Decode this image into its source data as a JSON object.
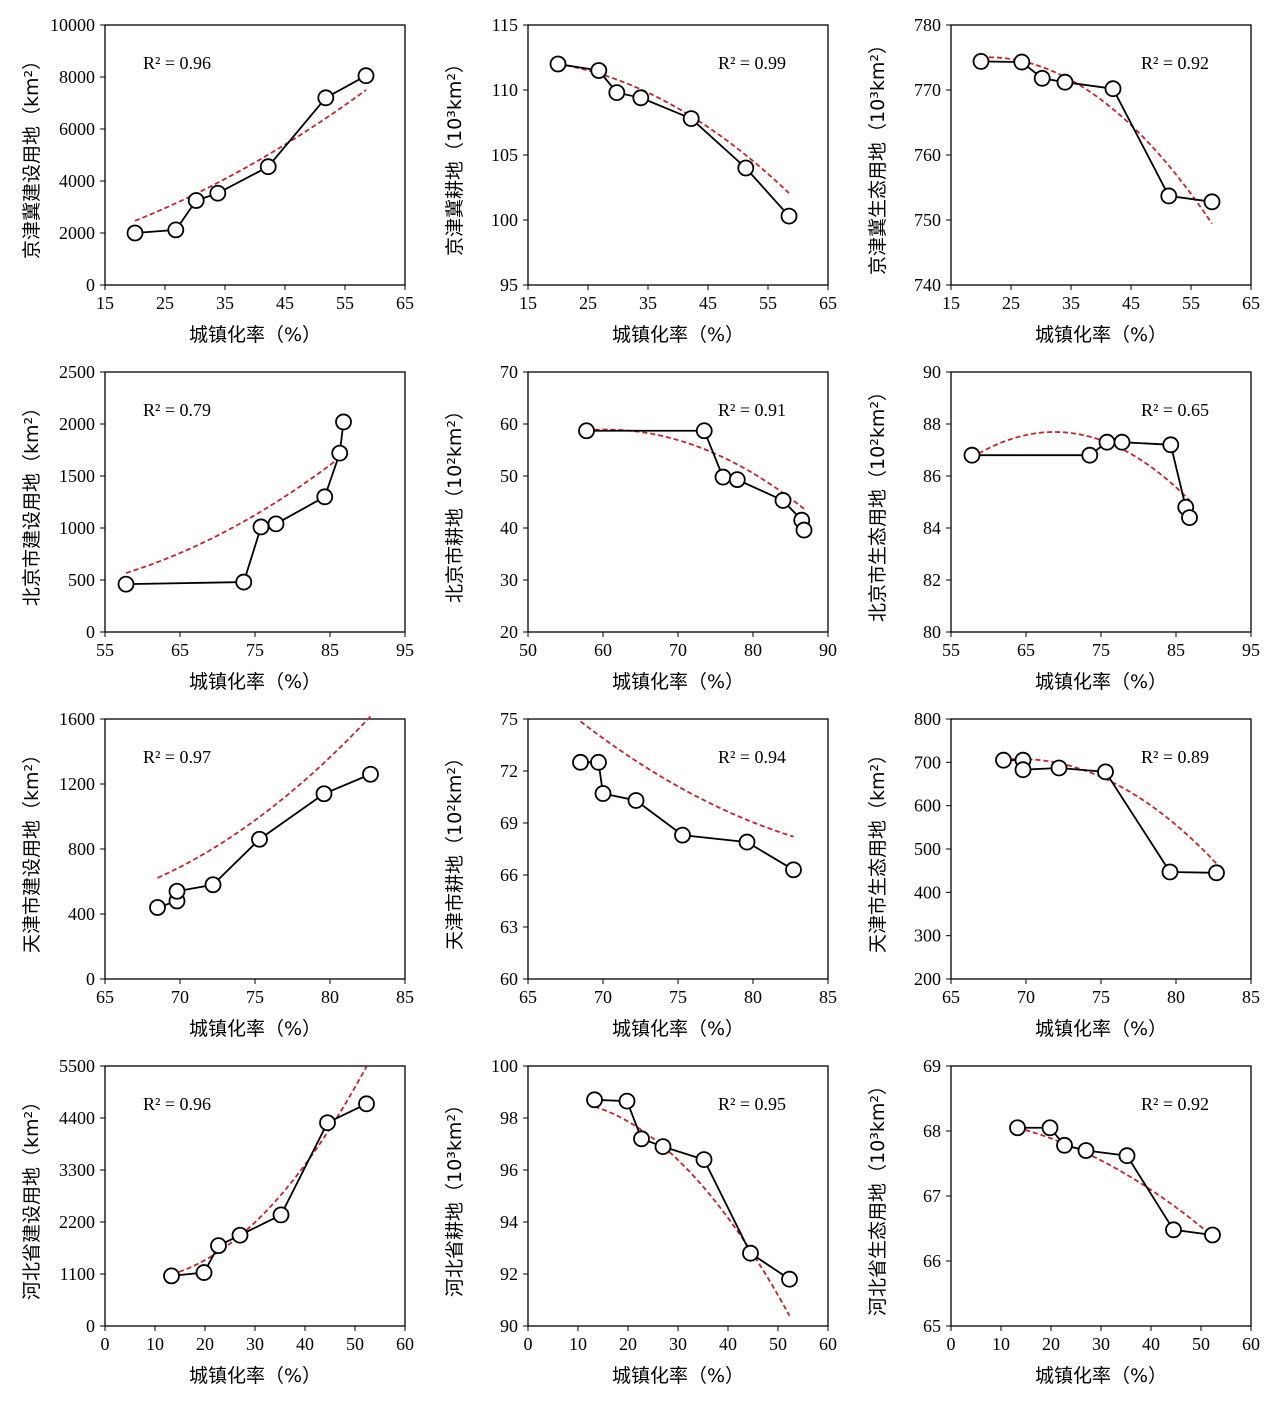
{
  "chart_data": [
    {
      "type": "scatter",
      "title": "",
      "xlabel": "城镇化率（%）",
      "ylabel": "京津冀建设用地（km²）",
      "r2": "R² = 0.96",
      "r2_pos": "top-left",
      "xlim": [
        15,
        65
      ],
      "xticks": [
        15,
        25,
        35,
        45,
        55,
        65
      ],
      "ylim": [
        0,
        10000
      ],
      "yticks": [
        0,
        2000,
        4000,
        6000,
        8000,
        10000
      ],
      "x": [
        20,
        26.8,
        30.2,
        33.8,
        42.2,
        51.8,
        58.5
      ],
      "y": [
        2000,
        2120,
        3250,
        3530,
        4550,
        7200,
        8050
      ],
      "trend": {
        "a": 0.9922,
        "b": 52.8,
        "c": 1015.7
      }
    },
    {
      "type": "scatter",
      "title": "",
      "xlabel": "城镇化率（%）",
      "ylabel": "京津冀耕地（10³km²）",
      "r2": "R² = 0.99",
      "r2_pos": "top-right",
      "xlim": [
        15,
        65
      ],
      "xticks": [
        15,
        25,
        35,
        45,
        55,
        65
      ],
      "ylim": [
        95,
        115
      ],
      "yticks": [
        95,
        100,
        105,
        110,
        115
      ],
      "x": [
        20,
        26.8,
        29.8,
        33.8,
        42.2,
        51.3,
        58.5
      ],
      "y": [
        112,
        111.5,
        109.8,
        109.4,
        107.8,
        104,
        100.3
      ],
      "trend": {
        "a": -0.004728,
        "b": 0.1131,
        "c": 111.63
      }
    },
    {
      "type": "scatter",
      "title": "",
      "xlabel": "城镇化率（%）",
      "ylabel": "京津冀生态用地（10³km²）",
      "r2": "R² = 0.92",
      "r2_pos": "top-right",
      "xlim": [
        15,
        65
      ],
      "xticks": [
        15,
        25,
        35,
        45,
        55,
        65
      ],
      "ylim": [
        740,
        780
      ],
      "yticks": [
        740,
        750,
        760,
        770,
        780
      ],
      "x": [
        20,
        26.8,
        30.2,
        34,
        42,
        51.3,
        58.5
      ],
      "y": [
        774.4,
        774.3,
        771.8,
        771.2,
        770.2,
        753.7,
        752.8
      ],
      "trend": {
        "a": -0.01836,
        "b": 0.7774,
        "c": 766.8
      }
    },
    {
      "type": "scatter",
      "title": "",
      "xlabel": "城镇化率（%）",
      "ylabel": "北京市建设用地（km²）",
      "r2": "R² = 0.79",
      "r2_pos": "top-left",
      "xlim": [
        55,
        95
      ],
      "xticks": [
        55,
        65,
        75,
        85,
        95
      ],
      "ylim": [
        0,
        2500
      ],
      "yticks": [
        0,
        500,
        1000,
        1500,
        2000,
        2500
      ],
      "x": [
        57.8,
        73.5,
        75.8,
        77.8,
        84.3,
        86.3,
        86.8
      ],
      "y": [
        460,
        480,
        1010,
        1040,
        1300,
        1720,
        2020
      ],
      "trend": {
        "a": 0.5774,
        "b": -44.27,
        "c": 1196.9
      }
    },
    {
      "type": "scatter",
      "title": "",
      "xlabel": "城镇化率（%）",
      "ylabel": "北京市耕地（10²km²）",
      "r2": "R² = 0.91",
      "r2_pos": "top-right",
      "xlim": [
        50,
        90
      ],
      "xticks": [
        50,
        60,
        70,
        80,
        90
      ],
      "ylim": [
        20,
        70
      ],
      "yticks": [
        20,
        30,
        40,
        50,
        60,
        70
      ],
      "x": [
        57.8,
        73.5,
        76,
        77.9,
        84,
        86.5,
        86.8
      ],
      "y": [
        58.7,
        58.7,
        49.8,
        49.3,
        45.3,
        41.5,
        39.6
      ],
      "trend": {
        "a": -0.02181,
        "b": 2.633,
        "c": -20.53
      }
    },
    {
      "type": "scatter",
      "title": "",
      "xlabel": "城镇化率（%）",
      "ylabel": "北京市生态用地（10²km²）",
      "r2": "R² = 0.65",
      "r2_pos": "top-right",
      "xlim": [
        55,
        95
      ],
      "xticks": [
        55,
        65,
        75,
        85,
        95
      ],
      "ylim": [
        80,
        90
      ],
      "yticks": [
        80,
        82,
        84,
        86,
        88,
        90
      ],
      "x": [
        57.8,
        73.5,
        75.8,
        77.8,
        84.3,
        86.3,
        86.8
      ],
      "y": [
        86.8,
        86.8,
        87.3,
        87.3,
        87.2,
        84.8,
        84.4
      ],
      "trend": {
        "a": -0.00811,
        "b": 1.116,
        "c": 49.3
      }
    },
    {
      "type": "scatter",
      "title": "",
      "xlabel": "城镇化率（%）",
      "ylabel": "天津市建设用地（km²）",
      "r2": "R² = 0.97",
      "r2_pos": "top-left",
      "xlim": [
        65,
        85
      ],
      "xticks": [
        65,
        70,
        75,
        80,
        85
      ],
      "ylim": [
        0,
        1600
      ],
      "yticks": [
        0,
        400,
        800,
        1200,
        1600
      ],
      "x": [
        68.5,
        69.8,
        69.8,
        72.2,
        75.3,
        79.6,
        82.7
      ],
      "y": [
        440,
        480,
        540,
        580,
        860,
        1140,
        1260
      ],
      "trend": {
        "a": 2.002,
        "b": -232.7,
        "c": 7168
      }
    },
    {
      "type": "scatter",
      "title": "",
      "xlabel": "城镇化率（%）",
      "ylabel": "天津市耕地（10²km²）",
      "r2": "R² = 0.94",
      "r2_pos": "top-right",
      "xlim": [
        65,
        85
      ],
      "xticks": [
        65,
        70,
        75,
        80,
        85
      ],
      "ylim": [
        60,
        75
      ],
      "yticks": [
        60,
        63,
        66,
        69,
        72,
        75
      ],
      "x": [
        68.5,
        69.7,
        70,
        72.2,
        75.3,
        79.6,
        82.7
      ],
      "y": [
        72.5,
        72.5,
        70.7,
        70.3,
        68.3,
        67.9,
        66.3
      ],
      "trend": {
        "a": 0.0141,
        "b": -2.6,
        "c": 186.8
      }
    },
    {
      "type": "scatter",
      "title": "",
      "xlabel": "城镇化率（%）",
      "ylabel": "天津市生态用地（km²）",
      "r2": "R² = 0.89",
      "r2_pos": "top-right",
      "xlim": [
        65,
        85
      ],
      "xticks": [
        65,
        70,
        75,
        80,
        85
      ],
      "ylim": [
        200,
        800
      ],
      "yticks": [
        200,
        300,
        400,
        500,
        600,
        700,
        800
      ],
      "x": [
        68.5,
        69.8,
        69.8,
        72.2,
        75.3,
        79.6,
        82.7
      ],
      "y": [
        705,
        705,
        683,
        687,
        678,
        447,
        445
      ],
      "trend": {
        "a": -1.4,
        "b": 194.8,
        "c": -6068.6
      }
    },
    {
      "type": "scatter",
      "title": "",
      "xlabel": "城镇化率（%）",
      "ylabel": "河北省建设用地（km²）",
      "r2": "R² = 0.96",
      "r2_pos": "top-left",
      "xlim": [
        0,
        60
      ],
      "xticks": [
        0,
        10,
        20,
        30,
        40,
        50,
        60
      ],
      "ylim": [
        0,
        5500
      ],
      "yticks": [
        0,
        1100,
        2200,
        3300,
        4400,
        5500
      ],
      "x": [
        13.3,
        19.8,
        22.7,
        27,
        35.2,
        44.5,
        52.3
      ],
      "y": [
        1060,
        1130,
        1700,
        1920,
        2350,
        4300,
        4700
      ],
      "trend": {
        "a": 2.1,
        "b": -25.1,
        "c": 1056
      }
    },
    {
      "type": "scatter",
      "title": "",
      "xlabel": "城镇化率（%）",
      "ylabel": "河北省耕地（10³km²）",
      "r2": "R² = 0.95",
      "r2_pos": "top-right",
      "xlim": [
        0,
        60
      ],
      "xticks": [
        0,
        10,
        20,
        30,
        40,
        50,
        60
      ],
      "ylim": [
        90,
        100
      ],
      "yticks": [
        90,
        92,
        94,
        96,
        98,
        100
      ],
      "x": [
        13.3,
        19.8,
        22.7,
        27,
        35.2,
        44.5,
        52.3
      ],
      "y": [
        98.7,
        98.65,
        97.2,
        96.9,
        96.4,
        92.8,
        91.8
      ],
      "trend": {
        "a": -0.00373,
        "b": 0.0384,
        "c": 98.59
      }
    },
    {
      "type": "scatter",
      "title": "",
      "xlabel": "城镇化率（%）",
      "ylabel": "河北省生态用地（10³km²）",
      "r2": "R² = 0.92",
      "r2_pos": "top-right",
      "xlim": [
        0,
        60
      ],
      "xticks": [
        0,
        10,
        20,
        30,
        40,
        50,
        60
      ],
      "ylim": [
        65,
        69
      ],
      "yticks": [
        65,
        66,
        67,
        68,
        69
      ],
      "x": [
        13.3,
        19.8,
        22.7,
        27,
        35.2,
        44.5,
        52.3
      ],
      "y": [
        68.05,
        68.05,
        67.78,
        67.7,
        67.62,
        66.48,
        66.4
      ],
      "trend": {
        "a": -0.000573,
        "b": -0.00522,
        "c": 68.22
      }
    }
  ],
  "colors": {
    "trend": "#c0262d",
    "marker_fill": "#ffffff",
    "line": "#000000"
  }
}
